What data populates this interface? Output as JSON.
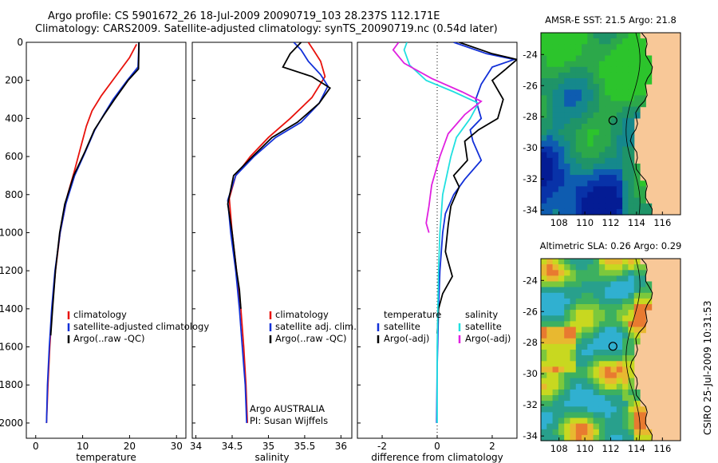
{
  "header": {
    "line1": "Argo profile: CS 5901672_26 18-Jul-2009 20090719_103 28.237S 112.171E",
    "line2": "Climatology: CARS2009. Satellite-adjusted climatology: synTS_20090719.nc (0.54d later)"
  },
  "side_label": "CSIRO 25-Jul-2009 10:31:53",
  "colors": {
    "climatology": "#e8120c",
    "satellite": "#1230d8",
    "argo": "#000000",
    "argo_adj_salinity": "#e020e0",
    "satellite_salinity": "#20e0e0",
    "land": "#f8c898"
  },
  "chart_data": [
    {
      "type": "line",
      "id": "temperature",
      "xlabel": "temperature",
      "ylabel": "",
      "xlim": [
        -2,
        32
      ],
      "ylim": [
        2080,
        0
      ],
      "xticks": [
        "0",
        "10",
        "20",
        "30"
      ],
      "xtick_values": [
        0,
        10,
        20,
        30
      ],
      "yticks": [
        "0",
        "200",
        "400",
        "600",
        "800",
        "1000",
        "1200",
        "1400",
        "1600",
        "1800",
        "2000"
      ],
      "ytick_values": [
        0,
        200,
        400,
        600,
        800,
        1000,
        1200,
        1400,
        1600,
        1800,
        2000
      ],
      "legend": [
        "climatology",
        "satellite-adjusted climatology",
        "Argo(..raw -QC)"
      ],
      "series": [
        {
          "name": "climatology",
          "color": "#e8120c",
          "x": [
            21.5,
            20,
            17,
            14,
            12,
            10.8,
            9.5,
            8.2,
            6.8,
            5.2,
            4.2,
            3.5,
            3.0,
            2.6,
            2.3
          ],
          "y": [
            10,
            80,
            180,
            280,
            360,
            440,
            560,
            680,
            800,
            1000,
            1200,
            1400,
            1600,
            1800,
            2000
          ]
        },
        {
          "name": "satellite-adjusted climatology",
          "color": "#1230d8",
          "x": [
            22,
            21.8,
            19.5,
            16.5,
            14.5,
            12.6,
            10.5,
            8.3,
            6.4,
            5.2,
            4.1,
            3.4,
            2.9,
            2.5,
            2.3
          ],
          "y": [
            0,
            130,
            200,
            300,
            380,
            460,
            580,
            700,
            850,
            1000,
            1200,
            1400,
            1600,
            1800,
            2000
          ]
        },
        {
          "name": "Argo(..raw -QC)",
          "color": "#000000",
          "x": [
            22,
            21.9,
            19.7,
            16.8,
            14.6,
            12.5,
            10.4,
            8.1,
            6.2,
            5.1,
            4.2,
            3.6,
            3.2
          ],
          "y": [
            0,
            140,
            200,
            300,
            380,
            460,
            580,
            700,
            850,
            1000,
            1200,
            1400,
            1540
          ]
        }
      ]
    },
    {
      "type": "line",
      "id": "salinity",
      "xlabel": "salinity",
      "ylabel": "",
      "xlim": [
        33.95,
        36.15
      ],
      "ylim": [
        2080,
        0
      ],
      "xticks": [
        "34",
        "34.5",
        "35",
        "35.5",
        "36"
      ],
      "xtick_values": [
        34,
        34.5,
        35,
        35.5,
        36
      ],
      "legend": [
        "climatology",
        "satellite adj. clim.",
        "Argo(..raw -QC)"
      ],
      "annotations": [
        "Argo AUSTRALIA",
        "PI: Susan Wijffels"
      ],
      "series": [
        {
          "name": "climatology",
          "color": "#e8120c",
          "x": [
            35.55,
            35.62,
            35.72,
            35.78,
            35.6,
            35.3,
            35.0,
            34.75,
            34.55,
            34.46,
            34.5,
            34.56,
            34.62,
            34.66,
            34.69,
            34.71
          ],
          "y": [
            0,
            40,
            100,
            180,
            290,
            400,
            500,
            600,
            700,
            820,
            1000,
            1200,
            1400,
            1600,
            1800,
            2000
          ]
        },
        {
          "name": "satellite adj. clim.",
          "color": "#1230d8",
          "x": [
            35.35,
            35.45,
            35.55,
            35.72,
            35.82,
            35.7,
            35.45,
            35.1,
            34.8,
            34.55,
            34.44,
            34.48,
            34.55,
            34.6,
            34.64,
            34.68,
            34.7
          ],
          "y": [
            0,
            40,
            100,
            170,
            230,
            320,
            420,
            500,
            600,
            700,
            830,
            1000,
            1200,
            1400,
            1600,
            1800,
            2000
          ]
        },
        {
          "name": "Argo(..raw -QC)",
          "color": "#000000",
          "x": [
            35.45,
            35.3,
            35.2,
            35.6,
            35.85,
            35.7,
            35.4,
            35.05,
            34.78,
            34.52,
            34.44,
            34.5,
            34.56,
            34.6,
            34.62
          ],
          "y": [
            0,
            60,
            130,
            180,
            240,
            320,
            420,
            500,
            600,
            700,
            850,
            1000,
            1200,
            1300,
            1400
          ]
        }
      ]
    },
    {
      "type": "line",
      "id": "difference",
      "xlabel": "difference from climatology",
      "ylabel": "",
      "xlim": [
        -2.9,
        2.9
      ],
      "ylim": [
        2080,
        0
      ],
      "xticks": [
        "-2",
        "0",
        "2"
      ],
      "xtick_values": [
        -2,
        0,
        2
      ],
      "legend_headers": [
        "temperature",
        "salinity"
      ],
      "legend": [
        "satellite",
        "Argo(-adj)",
        "satellite",
        "Argo(-adj)"
      ],
      "series": [
        {
          "name": "satellite",
          "color": "#1230d8",
          "x": [
            0.6,
            1.8,
            2.8,
            2.0,
            1.6,
            1.4,
            1.6,
            1.2,
            1.3,
            1.6,
            1.0,
            0.6,
            0.3,
            0.2,
            0.1,
            0.05,
            0.0,
            -0.02
          ],
          "y": [
            0,
            60,
            90,
            130,
            220,
            300,
            400,
            460,
            520,
            620,
            720,
            800,
            900,
            1000,
            1200,
            1400,
            1700,
            2000
          ]
        },
        {
          "name": "Argo(-adj)",
          "color": "#000000",
          "x": [
            0.8,
            2.0,
            2.9,
            2.5,
            2.0,
            2.4,
            2.2,
            1.5,
            1.0,
            1.1,
            0.6,
            0.8,
            0.5,
            0.4,
            0.3,
            0.55,
            0.2,
            0.05,
            0.0
          ],
          "y": [
            0,
            60,
            90,
            140,
            200,
            300,
            400,
            460,
            520,
            620,
            700,
            760,
            860,
            960,
            1100,
            1230,
            1320,
            1400,
            1530
          ]
        },
        {
          "name": "satellite",
          "color": "#20e0e0",
          "x": [
            -1.1,
            -1.2,
            -1.0,
            -0.4,
            0.6,
            1.5,
            1.2,
            0.7,
            0.5,
            0.2,
            0.1,
            0.05,
            0.0,
            0.0
          ],
          "y": [
            0,
            40,
            120,
            200,
            260,
            320,
            400,
            500,
            600,
            800,
            1000,
            1200,
            1600,
            2000
          ]
        },
        {
          "name": "Argo(-adj)",
          "color": "#e020e0",
          "x": [
            -1.4,
            -1.6,
            -1.2,
            -0.2,
            0.9,
            1.6,
            1.0,
            0.4,
            0.1,
            -0.2,
            -0.3,
            -0.4,
            -0.3
          ],
          "y": [
            0,
            40,
            110,
            190,
            260,
            310,
            380,
            480,
            600,
            750,
            860,
            950,
            1000
          ]
        }
      ]
    }
  ],
  "maps": [
    {
      "title": "AMSR-E SST: 21.5 Argo: 21.8",
      "yticks": [
        "-24",
        "-26",
        "-28",
        "-30",
        "-32",
        "-34"
      ],
      "xticks": [
        "108",
        "110",
        "112",
        "114",
        "116"
      ],
      "ytick_values": [
        -24,
        -26,
        -28,
        -30,
        -32,
        -34
      ],
      "xtick_values": [
        108,
        110,
        112,
        114,
        116
      ]
    },
    {
      "title": "Altimetric SLA: 0.26 Argo: 0.29",
      "yticks": [
        "-24",
        "-26",
        "-28",
        "-30",
        "-32",
        "-34"
      ],
      "xticks": [
        "108",
        "110",
        "112",
        "114",
        "116"
      ],
      "ytick_values": [
        -24,
        -26,
        -28,
        -30,
        -32,
        -34
      ],
      "xtick_values": [
        108,
        110,
        112,
        114,
        116
      ]
    }
  ]
}
